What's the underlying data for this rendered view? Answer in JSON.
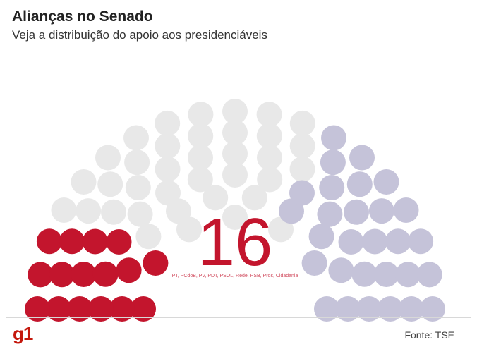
{
  "header": {
    "title": "Alianças no Senado",
    "subtitle": "Veja a distribuição do apoio aos presidenciáveis"
  },
  "footer": {
    "logo": "g1",
    "source": "Fonte: TSE"
  },
  "chart_data": {
    "type": "parliament",
    "title": "Alianças no Senado",
    "subtitle": "Veja a distribuição do apoio aos presidenciáveis",
    "total_seats": 81,
    "highlight": {
      "value": "16",
      "label": "PT, PCdoB, PV, PDT, PSOL, Rede, PSB, Pros, Cidadania"
    },
    "series": [
      {
        "seats": 16,
        "color": "#c3152d"
      },
      {
        "seats": 36,
        "color": "#e8e8e8"
      },
      {
        "seats": 29,
        "color": "#c5c3d9"
      }
    ]
  }
}
